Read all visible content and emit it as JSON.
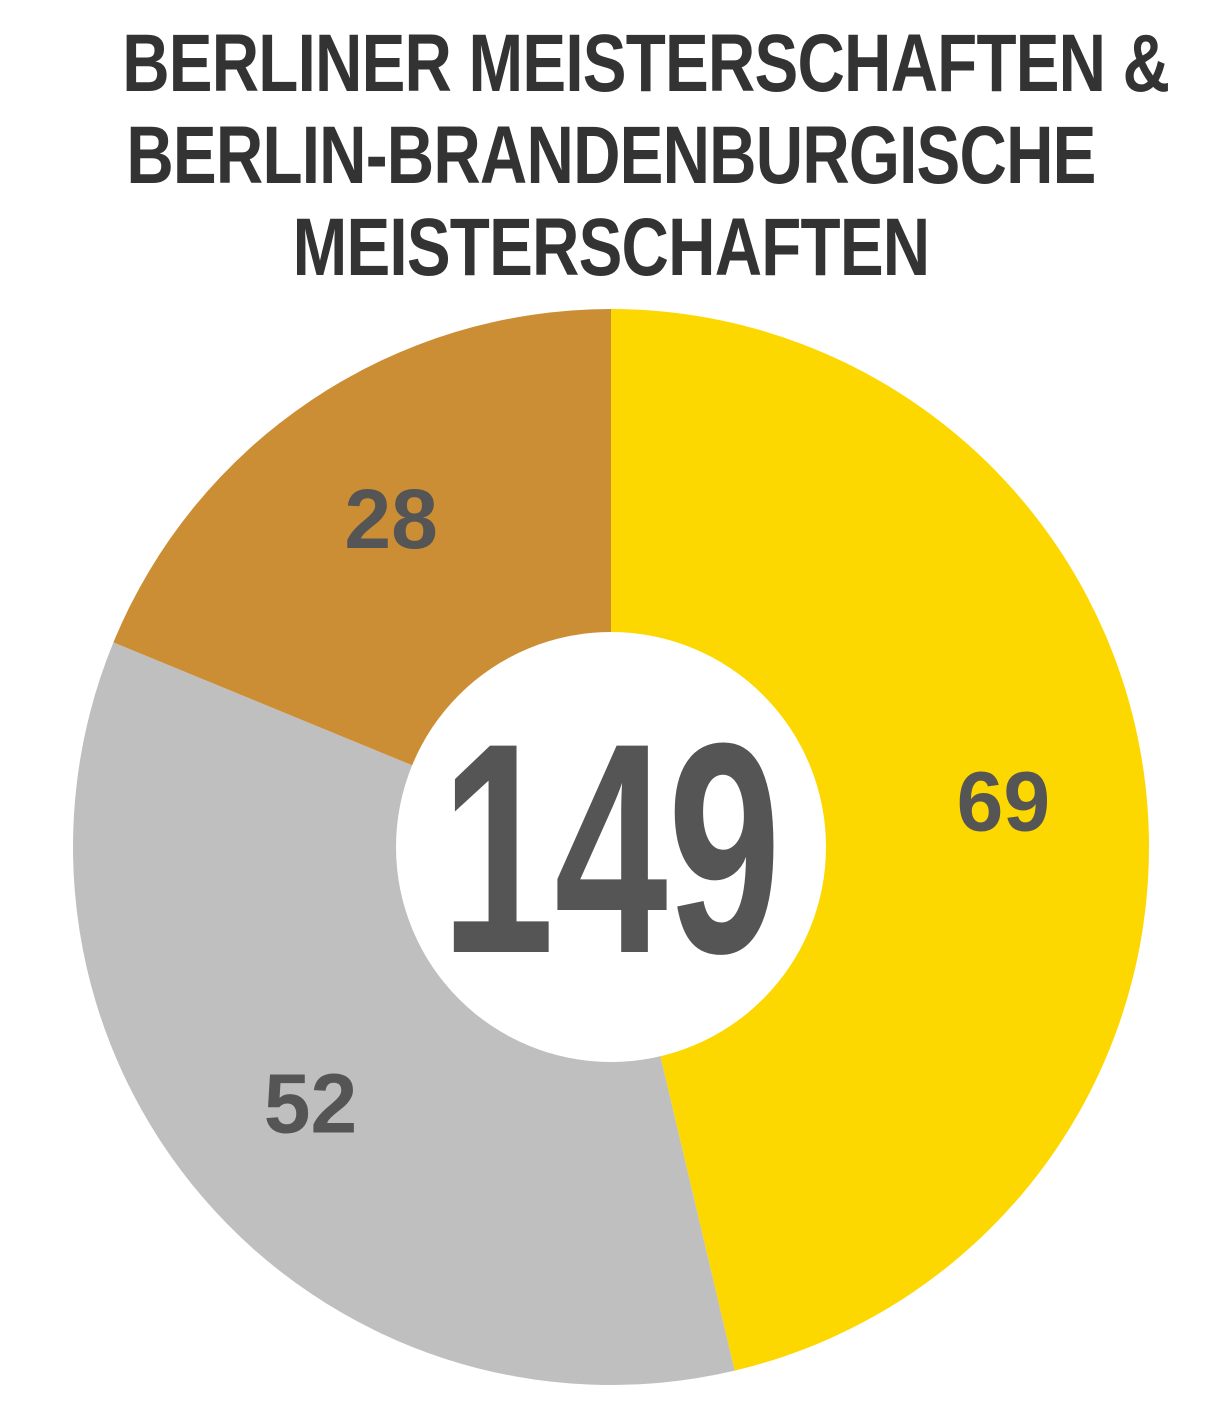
{
  "title": {
    "lines": [
      "BERLINER MEISTERSCHAFTEN &",
      "BERLIN-BRANDENBURGISCHE",
      "MEISTERSCHAFTEN"
    ]
  },
  "chart_data": {
    "type": "pie",
    "variant": "donut",
    "title": "BERLINER MEISTERSCHAFTEN & BERLIN-BRANDENBURGISCHE MEISTERSCHAFTEN",
    "total": "149",
    "start": "top",
    "direction": "clockwise",
    "slices": [
      {
        "value": 69,
        "label": "69",
        "color": "#FDD700"
      },
      {
        "value": 52,
        "label": "52",
        "color": "#BFBFBF"
      },
      {
        "value": 28,
        "label": "28",
        "color": "#CC8E35"
      }
    ],
    "label_color": "#555555",
    "total_color": "#555555",
    "hole_color": "#FFFFFF"
  }
}
